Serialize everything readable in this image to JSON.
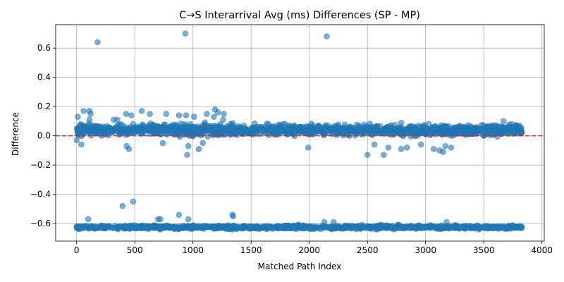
{
  "chart_data": {
    "type": "scatter",
    "title": "C→S Interarrival Avg (ms) Differences (SP - MP)",
    "xlabel": "Matched Path Index",
    "ylabel": "Difference",
    "xlim": [
      -180,
      4020
    ],
    "ylim": [
      -0.72,
      0.76
    ],
    "xticks": [
      0,
      500,
      1000,
      1500,
      2000,
      2500,
      3000,
      3500,
      4000
    ],
    "yticks": [
      -0.6,
      -0.4,
      -0.2,
      0.0,
      0.2,
      0.4,
      0.6
    ],
    "xtick_labels": [
      "0",
      "500",
      "1000",
      "1500",
      "2000",
      "2500",
      "3000",
      "3500",
      "4000"
    ],
    "ytick_labels": [
      "−0.6",
      "−0.4",
      "−0.2",
      "0.0",
      "0.2",
      "0.4",
      "0.6"
    ],
    "grid": true,
    "reference_line": {
      "y": 0.0,
      "color": "#d62728",
      "style": "dashed"
    },
    "marker_color": "#1f77b4",
    "marker_alpha": 0.6,
    "bands": [
      {
        "x_range": [
          0,
          3830
        ],
        "y_center": 0.04,
        "y_spread": 0.035,
        "count": 1400
      },
      {
        "x_range": [
          0,
          3830
        ],
        "y_center": -0.625,
        "y_spread": 0.012,
        "count": 1000
      }
    ],
    "outliers": [
      {
        "x": 180,
        "y": 0.64
      },
      {
        "x": 935,
        "y": 0.7
      },
      {
        "x": 2150,
        "y": 0.68
      },
      {
        "x": 10,
        "y": 0.13
      },
      {
        "x": 60,
        "y": 0.17
      },
      {
        "x": 110,
        "y": 0.17
      },
      {
        "x": 120,
        "y": 0.15
      },
      {
        "x": 110,
        "y": 0.11
      },
      {
        "x": 320,
        "y": 0.11
      },
      {
        "x": 350,
        "y": 0.11
      },
      {
        "x": 425,
        "y": 0.15
      },
      {
        "x": 470,
        "y": 0.14
      },
      {
        "x": 485,
        "y": 0.08
      },
      {
        "x": 560,
        "y": 0.17
      },
      {
        "x": 630,
        "y": 0.15
      },
      {
        "x": 770,
        "y": 0.15
      },
      {
        "x": 880,
        "y": 0.14
      },
      {
        "x": 940,
        "y": 0.14
      },
      {
        "x": 1010,
        "y": 0.13
      },
      {
        "x": 1120,
        "y": 0.15
      },
      {
        "x": 1180,
        "y": 0.13
      },
      {
        "x": 1190,
        "y": 0.18
      },
      {
        "x": 1215,
        "y": 0.16
      },
      {
        "x": 1265,
        "y": 0.15
      },
      {
        "x": 1260,
        "y": 0.11
      },
      {
        "x": 3670,
        "y": 0.1
      },
      {
        "x": 0,
        "y": -0.03
      },
      {
        "x": 40,
        "y": -0.06
      },
      {
        "x": 430,
        "y": -0.07
      },
      {
        "x": 450,
        "y": -0.09
      },
      {
        "x": 740,
        "y": -0.05
      },
      {
        "x": 950,
        "y": -0.13
      },
      {
        "x": 960,
        "y": -0.07
      },
      {
        "x": 1050,
        "y": -0.09
      },
      {
        "x": 1085,
        "y": -0.05
      },
      {
        "x": 1990,
        "y": -0.08
      },
      {
        "x": 2500,
        "y": -0.13
      },
      {
        "x": 2560,
        "y": -0.06
      },
      {
        "x": 2640,
        "y": -0.13
      },
      {
        "x": 2680,
        "y": -0.08
      },
      {
        "x": 2790,
        "y": -0.09
      },
      {
        "x": 2840,
        "y": -0.08
      },
      {
        "x": 2960,
        "y": -0.06
      },
      {
        "x": 3070,
        "y": -0.09
      },
      {
        "x": 3120,
        "y": -0.1
      },
      {
        "x": 3150,
        "y": -0.11
      },
      {
        "x": 3170,
        "y": -0.07
      },
      {
        "x": 3220,
        "y": -0.08
      },
      {
        "x": 395,
        "y": -0.48
      },
      {
        "x": 485,
        "y": -0.45
      },
      {
        "x": 100,
        "y": -0.57
      },
      {
        "x": 700,
        "y": -0.57
      },
      {
        "x": 720,
        "y": -0.57
      },
      {
        "x": 880,
        "y": -0.54
      },
      {
        "x": 960,
        "y": -0.57
      },
      {
        "x": 1340,
        "y": -0.54
      },
      {
        "x": 1345,
        "y": -0.55
      },
      {
        "x": 2130,
        "y": -0.59
      },
      {
        "x": 2210,
        "y": -0.59
      },
      {
        "x": 3180,
        "y": -0.59
      }
    ]
  }
}
